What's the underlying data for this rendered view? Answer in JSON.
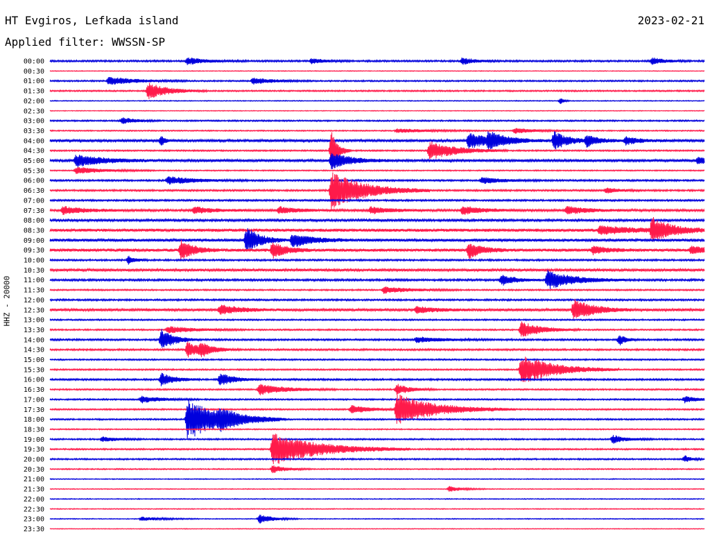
{
  "header": {
    "title": "HT Evgiros, Lefkada island",
    "subtitle": "Applied filter: WWSSN-SP",
    "date": "2023-02-21"
  },
  "chart_data": {
    "type": "line",
    "chart_kind": "helicorder",
    "ylabel": "HHZ - 20000",
    "colors": [
      "#0000dd",
      "#ff1a4a"
    ],
    "y_ticks": [
      "00:00",
      "00:30",
      "01:00",
      "01:30",
      "02:00",
      "02:30",
      "03:00",
      "03:30",
      "04:00",
      "04:30",
      "05:00",
      "05:30",
      "06:00",
      "06:30",
      "07:00",
      "07:30",
      "08:00",
      "08:30",
      "09:00",
      "09:30",
      "10:00",
      "10:30",
      "11:00",
      "11:30",
      "12:00",
      "12:30",
      "13:00",
      "13:30",
      "14:00",
      "14:30",
      "15:00",
      "15:30",
      "16:00",
      "16:30",
      "17:00",
      "17:30",
      "18:00",
      "18:30",
      "19:00",
      "19:30",
      "20:00",
      "20:30",
      "21:00",
      "21:30",
      "22:00",
      "22:30",
      "23:00",
      "23:30"
    ],
    "noise_levels": [
      1.2,
      0.5,
      1.0,
      1.0,
      0.6,
      0.5,
      1.0,
      0.8,
      1.8,
      1.0,
      1.8,
      0.8,
      1.2,
      1.2,
      1.2,
      1.6,
      1.6,
      2.2,
      2.0,
      2.2,
      1.2,
      1.8,
      1.4,
      1.0,
      1.2,
      1.8,
      1.0,
      1.0,
      1.2,
      1.2,
      1.0,
      1.0,
      1.2,
      1.0,
      1.0,
      1.0,
      1.0,
      0.8,
      1.0,
      1.0,
      1.0,
      0.8,
      0.6,
      0.6,
      0.6,
      0.6,
      0.6,
      0.5
    ],
    "events": [
      {
        "row": 0,
        "x": 0.21,
        "amp": 5,
        "dur": 0.03
      },
      {
        "row": 0,
        "x": 0.4,
        "amp": 4,
        "dur": 0.02
      },
      {
        "row": 0,
        "x": 0.63,
        "amp": 5,
        "dur": 0.02
      },
      {
        "row": 0,
        "x": 0.92,
        "amp": 5,
        "dur": 0.02
      },
      {
        "row": 2,
        "x": 0.09,
        "amp": 6,
        "dur": 0.04
      },
      {
        "row": 2,
        "x": 0.31,
        "amp": 5,
        "dur": 0.03
      },
      {
        "row": 3,
        "x": 0.15,
        "amp": 12,
        "dur": 0.03
      },
      {
        "row": 4,
        "x": 0.78,
        "amp": 5,
        "dur": 0.005
      },
      {
        "row": 6,
        "x": 0.11,
        "amp": 5,
        "dur": 0.02
      },
      {
        "row": 7,
        "x": 0.71,
        "amp": 4,
        "dur": 0.03
      },
      {
        "row": 7,
        "x": 0.53,
        "amp": 3,
        "dur": 0.05
      },
      {
        "row": 8,
        "x": 0.64,
        "amp": 12,
        "dur": 0.03
      },
      {
        "row": 8,
        "x": 0.67,
        "amp": 10,
        "dur": 0.03
      },
      {
        "row": 8,
        "x": 0.77,
        "amp": 14,
        "dur": 0.02
      },
      {
        "row": 8,
        "x": 0.82,
        "amp": 8,
        "dur": 0.02
      },
      {
        "row": 8,
        "x": 0.88,
        "amp": 6,
        "dur": 0.02
      },
      {
        "row": 8,
        "x": 0.17,
        "amp": 8,
        "dur": 0.005
      },
      {
        "row": 9,
        "x": 0.58,
        "amp": 14,
        "dur": 0.04
      },
      {
        "row": 9,
        "x": 0.43,
        "amp": 30,
        "dur": 0.01
      },
      {
        "row": 10,
        "x": 0.04,
        "amp": 9,
        "dur": 0.04
      },
      {
        "row": 10,
        "x": 0.43,
        "amp": 12,
        "dur": 0.03
      },
      {
        "row": 10,
        "x": 0.99,
        "amp": 5,
        "dur": 0.02
      },
      {
        "row": 11,
        "x": 0.04,
        "amp": 5,
        "dur": 0.04
      },
      {
        "row": 12,
        "x": 0.18,
        "amp": 6,
        "dur": 0.04
      },
      {
        "row": 12,
        "x": 0.66,
        "amp": 5,
        "dur": 0.03
      },
      {
        "row": 13,
        "x": 0.43,
        "amp": 28,
        "dur": 0.05
      },
      {
        "row": 13,
        "x": 0.85,
        "amp": 4,
        "dur": 0.02
      },
      {
        "row": 15,
        "x": 0.02,
        "amp": 6,
        "dur": 0.03
      },
      {
        "row": 15,
        "x": 0.22,
        "amp": 5,
        "dur": 0.03
      },
      {
        "row": 15,
        "x": 0.35,
        "amp": 5,
        "dur": 0.03
      },
      {
        "row": 15,
        "x": 0.49,
        "amp": 5,
        "dur": 0.03
      },
      {
        "row": 15,
        "x": 0.63,
        "amp": 6,
        "dur": 0.03
      },
      {
        "row": 15,
        "x": 0.79,
        "amp": 6,
        "dur": 0.03
      },
      {
        "row": 17,
        "x": 0.84,
        "amp": 6,
        "dur": 0.05
      },
      {
        "row": 17,
        "x": 0.92,
        "amp": 18,
        "dur": 0.03
      },
      {
        "row": 18,
        "x": 0.3,
        "amp": 20,
        "dur": 0.02
      },
      {
        "row": 18,
        "x": 0.37,
        "amp": 10,
        "dur": 0.03
      },
      {
        "row": 19,
        "x": 0.2,
        "amp": 14,
        "dur": 0.02
      },
      {
        "row": 19,
        "x": 0.34,
        "amp": 12,
        "dur": 0.02
      },
      {
        "row": 19,
        "x": 0.64,
        "amp": 12,
        "dur": 0.02
      },
      {
        "row": 19,
        "x": 0.83,
        "amp": 6,
        "dur": 0.02
      },
      {
        "row": 19,
        "x": 0.98,
        "amp": 6,
        "dur": 0.02
      },
      {
        "row": 20,
        "x": 0.12,
        "amp": 6,
        "dur": 0.01
      },
      {
        "row": 22,
        "x": 0.69,
        "amp": 8,
        "dur": 0.02
      },
      {
        "row": 22,
        "x": 0.76,
        "amp": 14,
        "dur": 0.04
      },
      {
        "row": 23,
        "x": 0.51,
        "amp": 5,
        "dur": 0.04
      },
      {
        "row": 25,
        "x": 0.26,
        "amp": 7,
        "dur": 0.03
      },
      {
        "row": 25,
        "x": 0.56,
        "amp": 5,
        "dur": 0.03
      },
      {
        "row": 25,
        "x": 0.8,
        "amp": 16,
        "dur": 0.03
      },
      {
        "row": 27,
        "x": 0.18,
        "amp": 5,
        "dur": 0.04
      },
      {
        "row": 27,
        "x": 0.72,
        "amp": 12,
        "dur": 0.03
      },
      {
        "row": 28,
        "x": 0.17,
        "amp": 16,
        "dur": 0.02
      },
      {
        "row": 28,
        "x": 0.87,
        "amp": 8,
        "dur": 0.01
      },
      {
        "row": 28,
        "x": 0.56,
        "amp": 4,
        "dur": 0.04
      },
      {
        "row": 29,
        "x": 0.21,
        "amp": 12,
        "dur": 0.02
      },
      {
        "row": 29,
        "x": 0.23,
        "amp": 8,
        "dur": 0.02
      },
      {
        "row": 31,
        "x": 0.72,
        "amp": 22,
        "dur": 0.05
      },
      {
        "row": 32,
        "x": 0.17,
        "amp": 10,
        "dur": 0.02
      },
      {
        "row": 32,
        "x": 0.26,
        "amp": 10,
        "dur": 0.02
      },
      {
        "row": 33,
        "x": 0.32,
        "amp": 8,
        "dur": 0.04
      },
      {
        "row": 33,
        "x": 0.53,
        "amp": 8,
        "dur": 0.02
      },
      {
        "row": 34,
        "x": 0.14,
        "amp": 5,
        "dur": 0.03
      },
      {
        "row": 34,
        "x": 0.97,
        "amp": 5,
        "dur": 0.02
      },
      {
        "row": 35,
        "x": 0.53,
        "amp": 22,
        "dur": 0.06
      },
      {
        "row": 35,
        "x": 0.46,
        "amp": 6,
        "dur": 0.03
      },
      {
        "row": 36,
        "x": 0.21,
        "amp": 30,
        "dur": 0.05
      },
      {
        "row": 36,
        "x": 0.26,
        "amp": 8,
        "dur": 0.03
      },
      {
        "row": 38,
        "x": 0.08,
        "amp": 4,
        "dur": 0.02
      },
      {
        "row": 38,
        "x": 0.86,
        "amp": 6,
        "dur": 0.02
      },
      {
        "row": 39,
        "x": 0.34,
        "amp": 24,
        "dur": 0.07
      },
      {
        "row": 40,
        "x": 0.97,
        "amp": 5,
        "dur": 0.01
      },
      {
        "row": 41,
        "x": 0.34,
        "amp": 6,
        "dur": 0.02
      },
      {
        "row": 43,
        "x": 0.61,
        "amp": 4,
        "dur": 0.02
      },
      {
        "row": 46,
        "x": 0.32,
        "amp": 7,
        "dur": 0.02
      },
      {
        "row": 46,
        "x": 0.14,
        "amp": 3,
        "dur": 0.03
      }
    ]
  }
}
